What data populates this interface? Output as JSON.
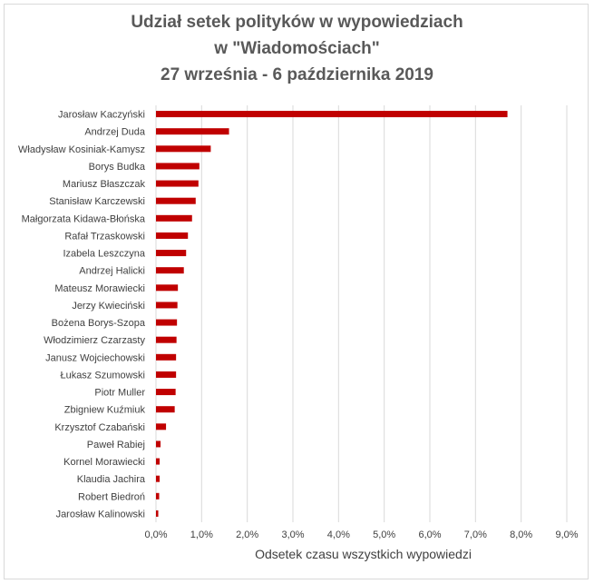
{
  "chart_data": {
    "type": "bar",
    "orientation": "horizontal",
    "title_lines": [
      "Udział setek polityków w wypowiedziach",
      "w \"Wiadomościach\"",
      "27 września - 6 października 2019"
    ],
    "xlabel": "Odsetek czasu wszystkich wypowiedzi",
    "ylabel": "",
    "categories": [
      "Jarosław Kaczyński",
      "Andrzej Duda",
      "Władysław Kosiniak-Kamysz",
      "Borys Budka",
      "Mariusz Błaszczak",
      "Stanisław Karczewski",
      "Małgorzata Kidawa-Błońska",
      "Rafał Trzaskowski",
      "Izabela Leszczyna",
      "Andrzej Halicki",
      "Mateusz Morawiecki",
      "Jerzy Kwieciński",
      "Bożena Borys-Szopa",
      "Włodzimierz Czarzasty",
      "Janusz Wojciechowski",
      "Łukasz Szumowski",
      "Piotr Muller",
      "Zbigniew Kuźmiuk",
      "Krzysztof Czabański",
      "Paweł Rabiej",
      "Kornel Morawiecki",
      "Klaudia Jachira",
      "Robert Biedroń",
      "Jarosław Kalinowski"
    ],
    "values": [
      7.7,
      1.6,
      1.2,
      0.95,
      0.93,
      0.87,
      0.79,
      0.7,
      0.66,
      0.61,
      0.48,
      0.47,
      0.46,
      0.45,
      0.44,
      0.44,
      0.43,
      0.41,
      0.22,
      0.1,
      0.08,
      0.08,
      0.07,
      0.05
    ],
    "xlim": [
      0,
      9
    ],
    "x_ticks": [
      "0,0%",
      "1,0%",
      "2,0%",
      "3,0%",
      "4,0%",
      "5,0%",
      "6,0%",
      "7,0%",
      "8,0%",
      "9,0%"
    ],
    "grid": "vertical",
    "bar_color": "#c00000",
    "grid_color": "#d9d9d9"
  }
}
